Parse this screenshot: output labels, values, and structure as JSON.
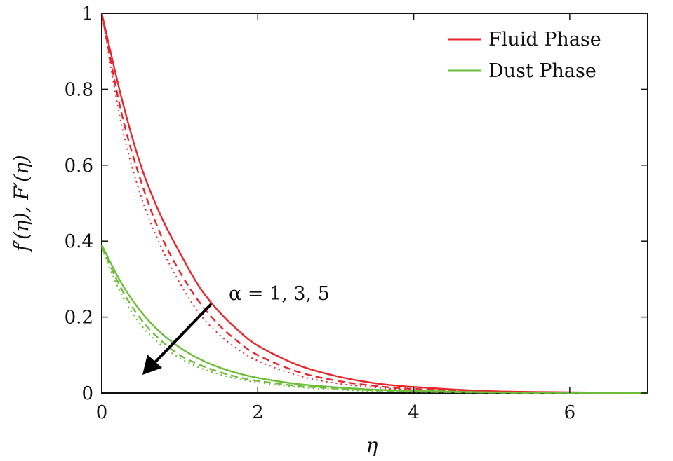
{
  "chart_data": {
    "type": "line",
    "xlabel": "η",
    "ylabel": "f′(η), F′(η)",
    "xlim": [
      0,
      7
    ],
    "ylim": [
      0,
      1
    ],
    "xticks": [
      0,
      2,
      4,
      6
    ],
    "yticks": [
      0,
      0.2,
      0.4,
      0.6,
      0.8,
      1
    ],
    "xtick_labels": [
      "0",
      "2",
      "4",
      "6"
    ],
    "ytick_labels": [
      "0",
      "0.2",
      "0.4",
      "0.6",
      "0.8",
      "1"
    ],
    "grid": false,
    "legend_position": "top-right",
    "legend": [
      {
        "label": "Fluid Phase",
        "color": "#e8262d"
      },
      {
        "label": "Dust Phase",
        "color": "#6cbd3a"
      }
    ],
    "annotation": {
      "text": "α = 1, 3, 5",
      "arrow_direction": "down-left"
    },
    "x": [
      0,
      0.25,
      0.5,
      0.75,
      1,
      1.25,
      1.5,
      1.75,
      2,
      2.5,
      3,
      3.5,
      4,
      5,
      6,
      7
    ],
    "series": [
      {
        "group": "Fluid Phase",
        "alpha": 1,
        "color": "#e8262d",
        "dash": "solid",
        "values": [
          1.0,
          0.78,
          0.6,
          0.47,
          0.37,
          0.28,
          0.215,
          0.165,
          0.125,
          0.075,
          0.045,
          0.026,
          0.016,
          0.005,
          0.002,
          0.0
        ]
      },
      {
        "group": "Fluid Phase",
        "alpha": 3,
        "color": "#e8262d",
        "dash": "dashed",
        "values": [
          1.0,
          0.74,
          0.56,
          0.42,
          0.32,
          0.24,
          0.18,
          0.135,
          0.1,
          0.057,
          0.033,
          0.019,
          0.011,
          0.004,
          0.001,
          0.0
        ]
      },
      {
        "group": "Fluid Phase",
        "alpha": 5,
        "color": "#e8262d",
        "dash": "dotted",
        "values": [
          1.0,
          0.71,
          0.52,
          0.39,
          0.29,
          0.21,
          0.155,
          0.115,
          0.085,
          0.047,
          0.026,
          0.015,
          0.008,
          0.003,
          0.001,
          0.0
        ]
      },
      {
        "group": "Dust Phase",
        "alpha": 1,
        "color": "#6cbd3a",
        "dash": "solid",
        "values": [
          0.39,
          0.29,
          0.215,
          0.16,
          0.12,
          0.09,
          0.068,
          0.052,
          0.04,
          0.024,
          0.015,
          0.009,
          0.006,
          0.002,
          0.001,
          0.0
        ]
      },
      {
        "group": "Dust Phase",
        "alpha": 3,
        "color": "#6cbd3a",
        "dash": "dashed",
        "values": [
          0.385,
          0.275,
          0.195,
          0.14,
          0.1,
          0.075,
          0.056,
          0.042,
          0.032,
          0.019,
          0.012,
          0.007,
          0.004,
          0.001,
          0.0,
          0.0
        ]
      },
      {
        "group": "Dust Phase",
        "alpha": 5,
        "color": "#6cbd3a",
        "dash": "dotted",
        "values": [
          0.38,
          0.26,
          0.18,
          0.128,
          0.092,
          0.067,
          0.05,
          0.037,
          0.028,
          0.016,
          0.009,
          0.005,
          0.003,
          0.001,
          0.0,
          0.0
        ]
      }
    ]
  }
}
